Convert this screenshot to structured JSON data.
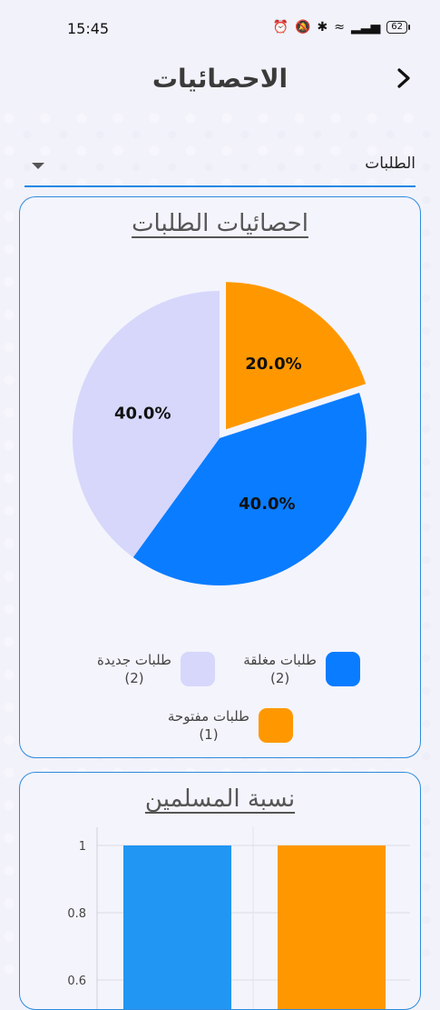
{
  "status": {
    "time": "15:45",
    "battery": "62"
  },
  "header": {
    "title": "الاحصائيات",
    "back_icon": "chevron-right-icon"
  },
  "filter": {
    "selected": "الطلبات"
  },
  "card1": {
    "title": "احصائيات الطلبات",
    "legend": [
      {
        "label": "طلبات مغلقة",
        "count": "(2)",
        "color": "#0a7cff"
      },
      {
        "label": "طلبات جديدة",
        "count": "(2)",
        "color": "#d6d7fb"
      },
      {
        "label": "طلبات مفتوحة",
        "count": "(1)",
        "color": "#ff9800"
      }
    ]
  },
  "card2": {
    "title": "نسبة المسلمين"
  },
  "chart_data": [
    {
      "type": "pie",
      "slices": [
        {
          "name": "طلبات مفتوحة",
          "value": 20.0,
          "label": "20.0%",
          "color": "#ff9800",
          "exploded": true
        },
        {
          "name": "طلبات مغلقة",
          "value": 40.0,
          "label": "40.0%",
          "color": "#0a7cff"
        },
        {
          "name": "طلبات جديدة",
          "value": 40.0,
          "label": "40.0%",
          "color": "#d6d7fb"
        }
      ]
    },
    {
      "type": "bar",
      "values": [
        1,
        1
      ],
      "colors": [
        "#2196f3",
        "#ff9800"
      ],
      "yticks": [
        "1",
        "0.8",
        "0.6"
      ],
      "ylim": [
        0.6,
        1
      ],
      "grid": true
    }
  ]
}
